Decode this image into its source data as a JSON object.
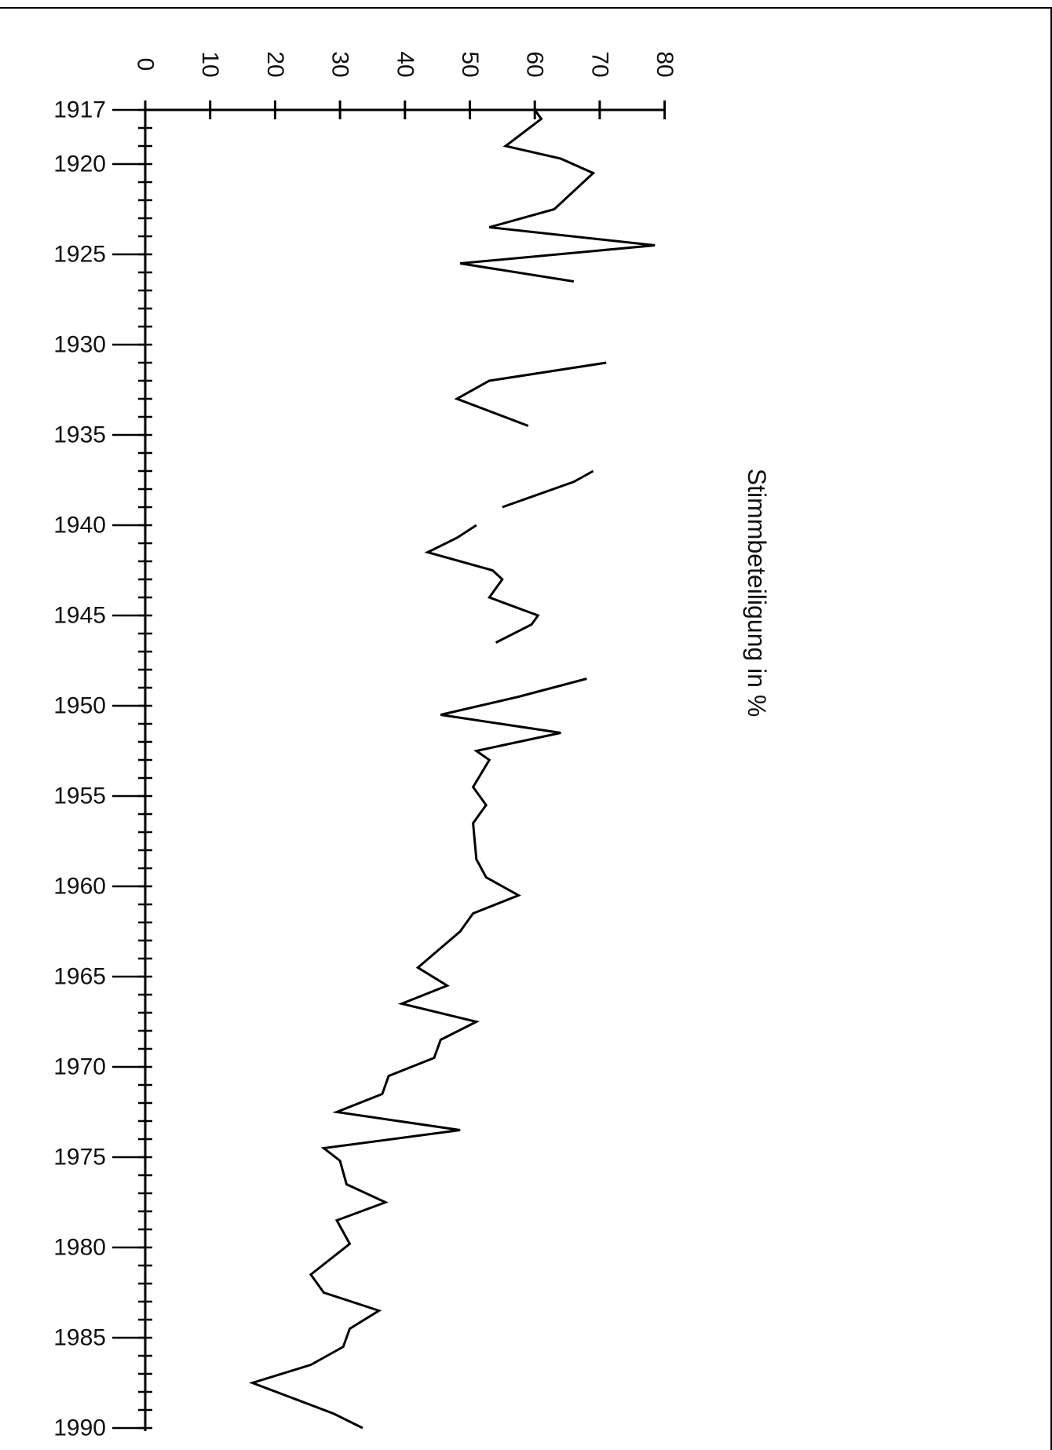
{
  "chart_data": {
    "type": "line",
    "orientation": "rotated-90-clockwise",
    "ylabel": "Stimmbeteiligung in %",
    "xlabel": "",
    "value_ticks": [
      "0",
      "10",
      "20",
      "30",
      "40",
      "50",
      "60",
      "70",
      "80"
    ],
    "year_ticks": [
      "1917",
      "1920",
      "1925",
      "1930",
      "1935",
      "1940",
      "1945",
      "1950",
      "1955",
      "1960",
      "1965",
      "1970",
      "1975",
      "1980",
      "1985",
      "1990"
    ],
    "ylim": [
      0,
      80
    ],
    "xlim": [
      1917,
      1990
    ],
    "grid": false,
    "colors": {
      "line": "#000000",
      "axis": "#000000",
      "background": "#ffffff"
    },
    "series": [
      {
        "segments": [
          [
            [
              1917,
              60
            ],
            [
              1917.5,
              61
            ],
            [
              1919,
              55.5
            ],
            [
              1919.7,
              64
            ],
            [
              1920.5,
              69
            ],
            [
              1922.5,
              63
            ],
            [
              1923.5,
              53
            ],
            [
              1924.5,
              78.5
            ],
            [
              1925.5,
              48.5
            ],
            [
              1926.5,
              66
            ]
          ],
          [
            [
              1931,
              71
            ],
            [
              1932,
              53
            ],
            [
              1933,
              48
            ],
            [
              1934.5,
              59
            ]
          ],
          [
            [
              1937,
              69
            ],
            [
              1937.6,
              66
            ],
            [
              1939,
              55
            ]
          ],
          [
            [
              1940,
              51
            ],
            [
              1940.7,
              48
            ],
            [
              1941.5,
              43.5
            ],
            [
              1942.5,
              53.5
            ],
            [
              1943,
              55
            ],
            [
              1944,
              53
            ],
            [
              1945,
              60.5
            ],
            [
              1945.5,
              59.5
            ],
            [
              1946.5,
              54
            ]
          ],
          [
            [
              1948.5,
              68
            ],
            [
              1949.5,
              57.5
            ],
            [
              1950.5,
              45.5
            ],
            [
              1951.5,
              64
            ],
            [
              1952.5,
              51
            ],
            [
              1953,
              53
            ],
            [
              1954.5,
              50.5
            ],
            [
              1955.5,
              52.5
            ],
            [
              1956.5,
              50.5
            ],
            [
              1958.5,
              51
            ],
            [
              1959.5,
              52.5
            ],
            [
              1960.5,
              57.5
            ],
            [
              1961.5,
              50.5
            ],
            [
              1962.5,
              48.5
            ],
            [
              1964.5,
              42
            ],
            [
              1965.5,
              46.5
            ],
            [
              1966.5,
              39.5
            ],
            [
              1967.5,
              51
            ],
            [
              1968.5,
              45.5
            ],
            [
              1969.5,
              44.5
            ],
            [
              1970.5,
              37.5
            ],
            [
              1971.5,
              36.5
            ],
            [
              1972.5,
              29.5
            ],
            [
              1973.5,
              48.5
            ],
            [
              1974.5,
              27.5
            ],
            [
              1975.2,
              30
            ],
            [
              1976.5,
              31
            ],
            [
              1977.5,
              37
            ],
            [
              1978.5,
              29.5
            ],
            [
              1979.8,
              31.5
            ],
            [
              1981.5,
              25.5
            ],
            [
              1982.5,
              27.5
            ],
            [
              1983.5,
              36
            ],
            [
              1984.5,
              31.5
            ],
            [
              1985.5,
              30.5
            ],
            [
              1986.5,
              25.5
            ],
            [
              1987.5,
              16.5
            ],
            [
              1989.2,
              29
            ],
            [
              1990,
              33.5
            ]
          ]
        ]
      }
    ]
  }
}
